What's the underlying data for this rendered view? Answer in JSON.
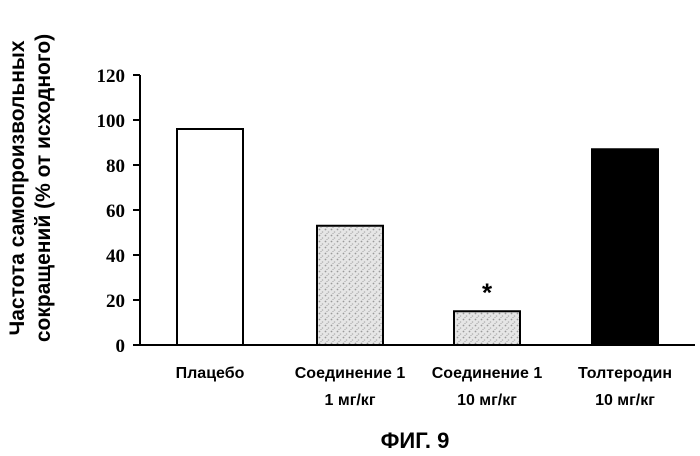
{
  "chart_data": {
    "type": "bar",
    "categories": [
      [
        "Плацебо"
      ],
      [
        "Соединение 1",
        "1 мг/кг"
      ],
      [
        "Соединение 1",
        "10 мг/кг"
      ],
      [
        "Толтеродин",
        "10 мг/кг"
      ]
    ],
    "values": [
      96,
      53,
      15,
      87
    ],
    "bar_styles": [
      "white",
      "stippled-light",
      "stippled-light",
      "black"
    ],
    "ylabel": [
      "Частота самопроизвольных",
      "сокращений (% от исходного)"
    ],
    "ylim": [
      0,
      120
    ],
    "yticks": [
      0,
      20,
      40,
      60,
      80,
      100,
      120
    ],
    "annotations": [
      {
        "category_index": 2,
        "text": "*"
      }
    ],
    "grid": false,
    "legend": "none"
  },
  "figure": {
    "caption": "ФИГ. 9"
  },
  "colors": {
    "axis": "#000000",
    "bar_white": "#ffffff",
    "bar_stipple_bg": "#e6e6e6",
    "bar_stipple_dot": "#9a9a9a",
    "bar_black": "#000000"
  }
}
